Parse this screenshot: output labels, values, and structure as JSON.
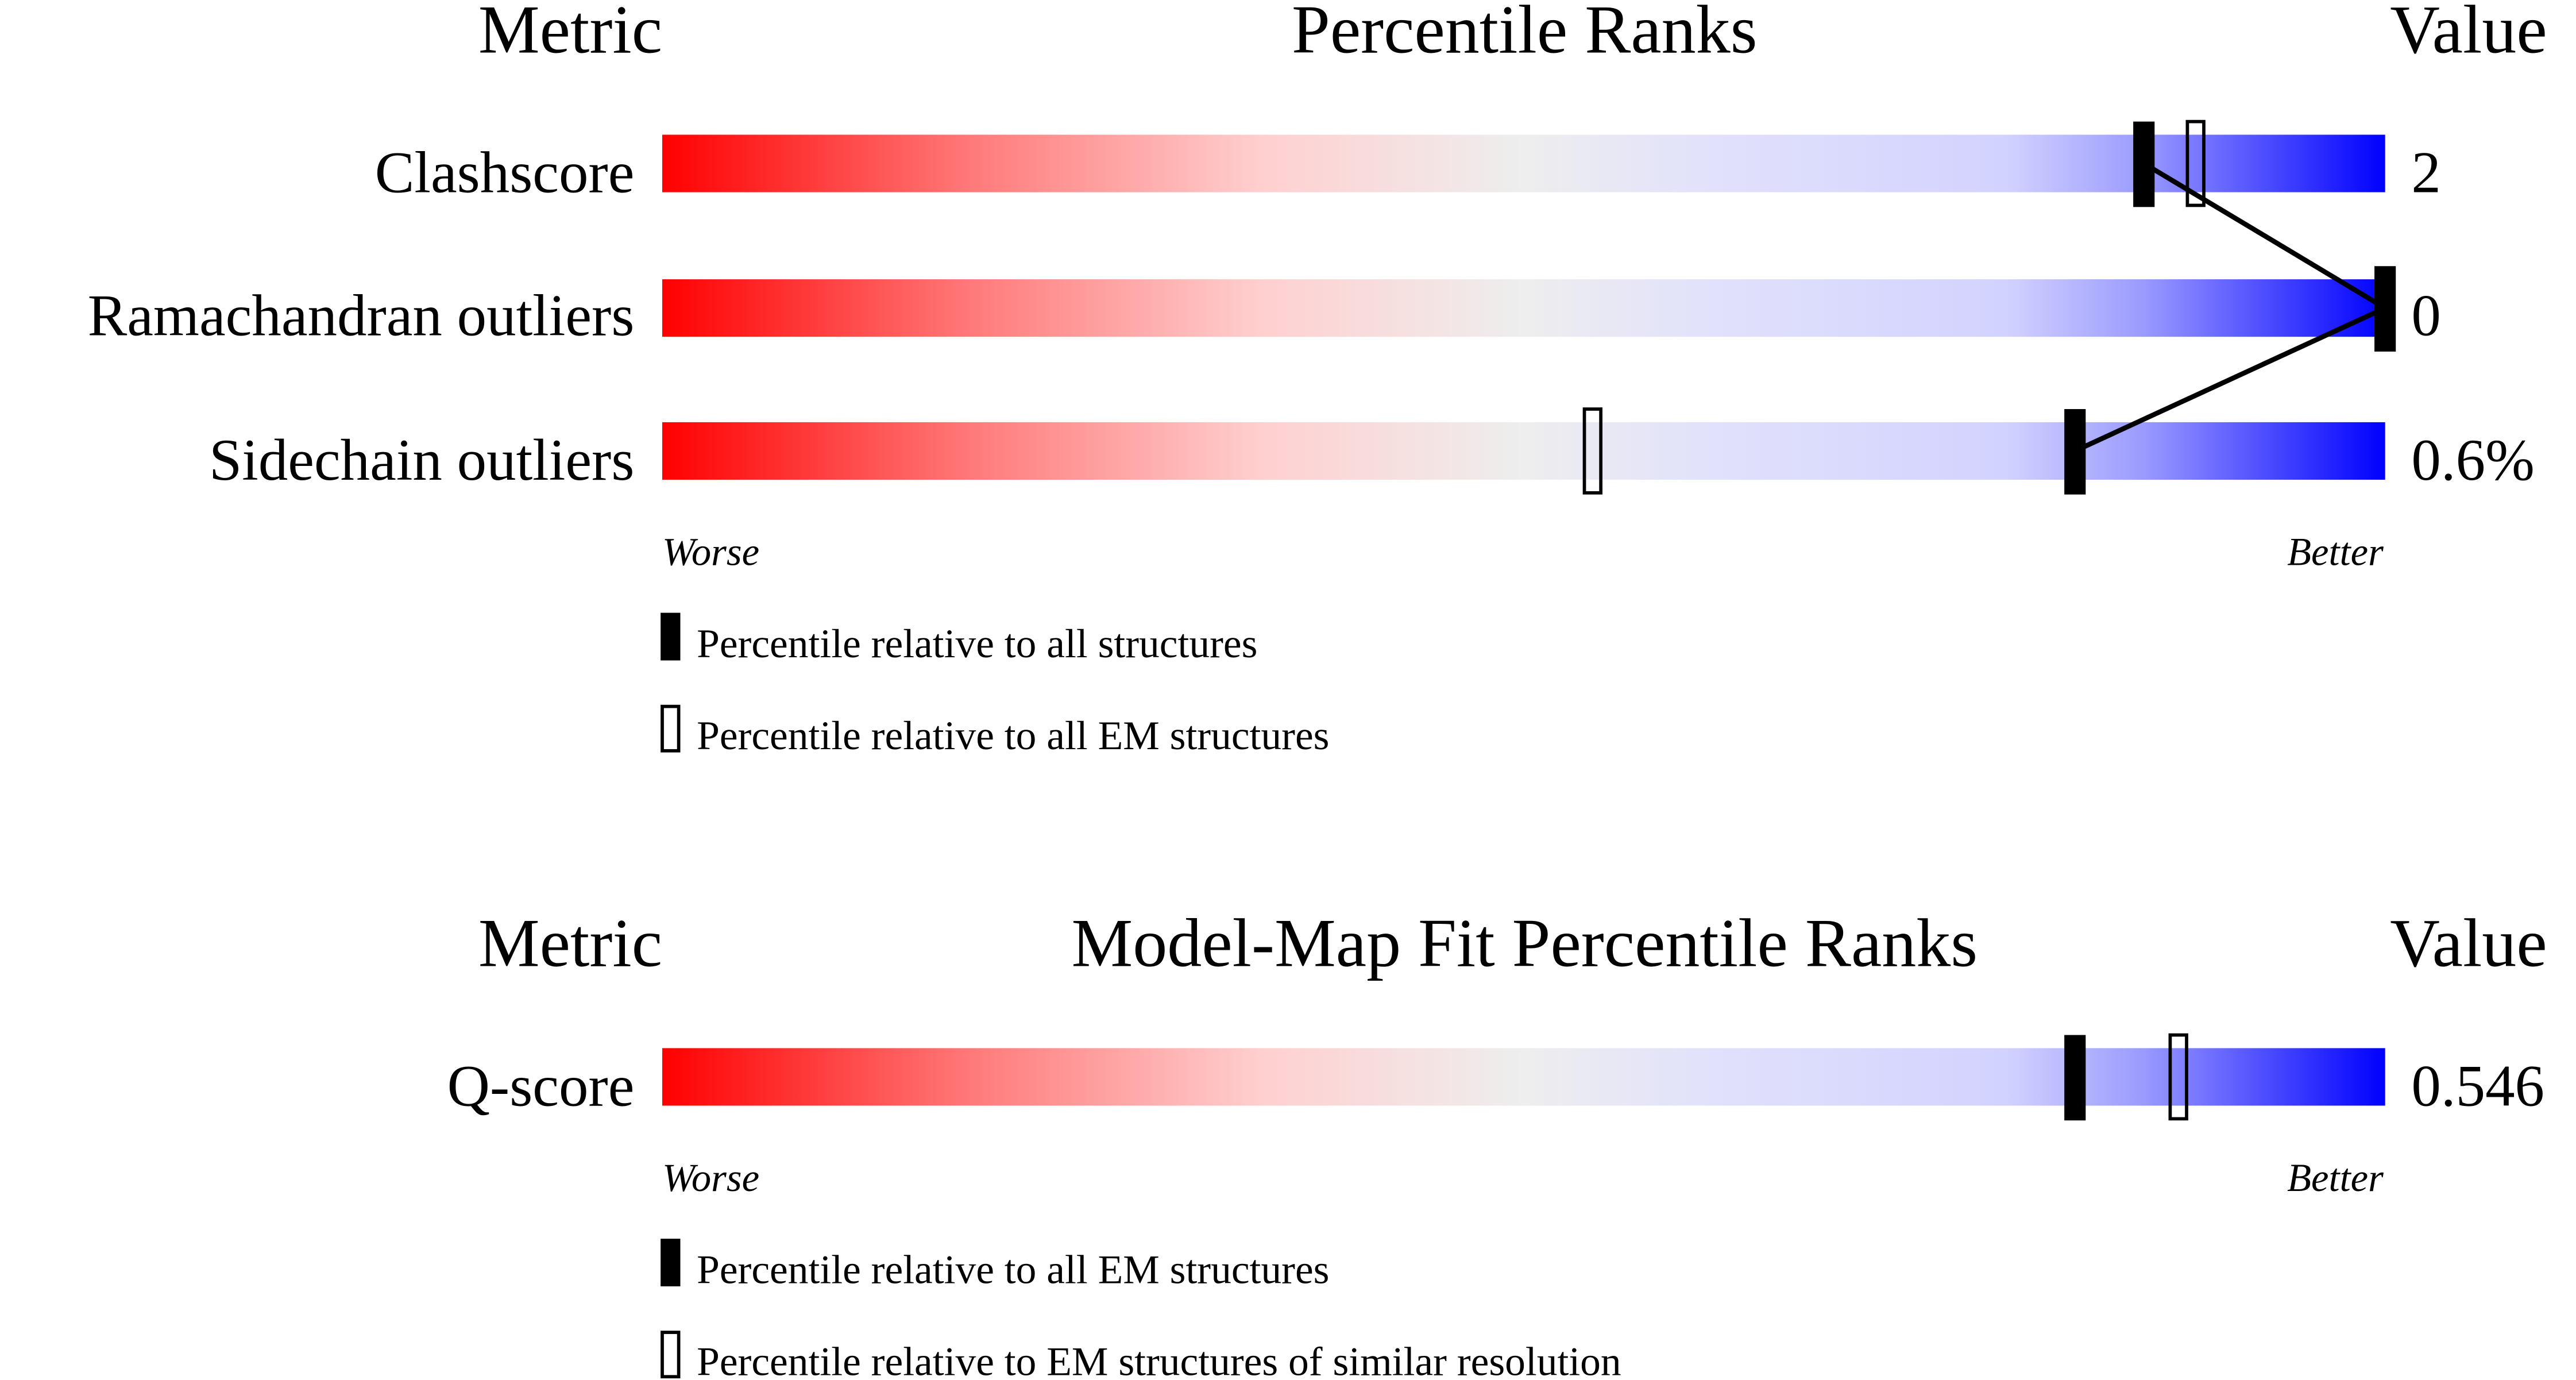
{
  "chart_data": [
    {
      "type": "bar",
      "headers": {
        "metric": "Metric",
        "title": "Percentile Ranks",
        "value": "Value"
      },
      "xlim": [
        0,
        100
      ],
      "axis_labels": {
        "left": "Worse",
        "right": "Better"
      },
      "rows": [
        {
          "metric": "Clashscore",
          "value": "2",
          "percentile_all": 86,
          "percentile_em": 89
        },
        {
          "metric": "Ramachandran outliers",
          "value": "0",
          "percentile_all": 100,
          "percentile_em": null
        },
        {
          "metric": "Sidechain outliers",
          "value": "0.6%",
          "percentile_all": 82,
          "percentile_em": 54
        }
      ],
      "legend": [
        {
          "marker": "filled",
          "label": "Percentile relative to all structures"
        },
        {
          "marker": "open",
          "label": "Percentile relative to all EM structures"
        }
      ],
      "connect_filled_markers": true
    },
    {
      "type": "bar",
      "headers": {
        "metric": "Metric",
        "title": "Model-Map Fit Percentile Ranks",
        "value": "Value"
      },
      "xlim": [
        0,
        100
      ],
      "axis_labels": {
        "left": "Worse",
        "right": "Better"
      },
      "rows": [
        {
          "metric": "Q-score",
          "value": "0.546",
          "percentile_all": 82,
          "percentile_em": 88
        }
      ],
      "legend": [
        {
          "marker": "filled",
          "label": "Percentile relative to all EM structures"
        },
        {
          "marker": "open",
          "label": "Percentile relative to EM structures of similar resolution"
        }
      ],
      "connect_filled_markers": false
    }
  ],
  "colors": {
    "worse": "#ff0000",
    "mid": "#eeeeee",
    "better": "#0000ff",
    "marker": "#000000"
  }
}
